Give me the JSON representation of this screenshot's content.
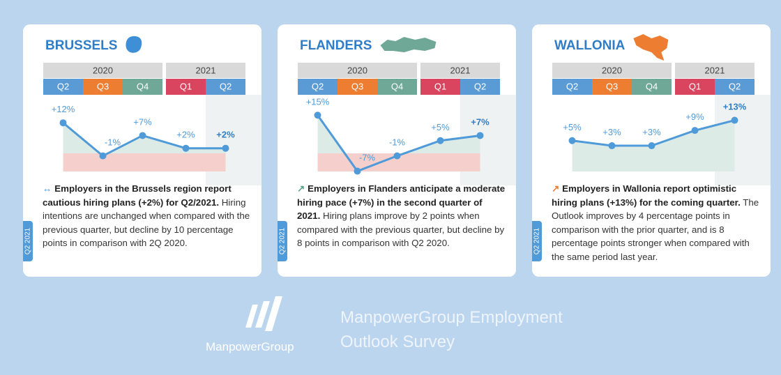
{
  "chart_data": [
    {
      "type": "line",
      "title": "BRUSSELS",
      "years": [
        "2020",
        "2021"
      ],
      "categories": [
        "Q2",
        "Q3",
        "Q4",
        "Q1",
        "Q2"
      ],
      "category_colors": [
        "#5b9bd5",
        "#ed7d31",
        "#6fa896",
        "#d9455f",
        "#5b9bd5"
      ],
      "values": [
        12,
        -1,
        7,
        2,
        2
      ],
      "value_labels": [
        "+12%",
        "-1%",
        "+7%",
        "+2%",
        "+2%"
      ],
      "color": "#4f9ad8",
      "icon": "↔",
      "icon_color": "#3a8fd8",
      "lead": "Employers in the Brussels region report cautious hiring plans (+2%) for Q2/2021.",
      "body": "Hiring intentions are unchanged when compared with the previous quarter, but decline by 10 percentage points in comparison with 2Q 2020.",
      "edition": "Q2 2021",
      "map_color": "#3f8fd6"
    },
    {
      "type": "line",
      "title": "FLANDERS",
      "years": [
        "2020",
        "2021"
      ],
      "categories": [
        "Q2",
        "Q3",
        "Q4",
        "Q1",
        "Q2"
      ],
      "category_colors": [
        "#5b9bd5",
        "#ed7d31",
        "#6fa896",
        "#d9455f",
        "#5b9bd5"
      ],
      "values": [
        15,
        -7,
        -1,
        5,
        7
      ],
      "value_labels": [
        "+15%",
        "-7%",
        "-1%",
        "+5%",
        "+7%"
      ],
      "color": "#4f9ad8",
      "icon": "↗",
      "icon_color": "#5aa58a",
      "lead": "Employers in Flanders anticipate a moderate hiring pace (+7%) in the second quarter of 2021.",
      "body": "Hiring plans improve by 2 points when compared with the previous quarter, but decline by 8 points in comparison with Q2 2020.",
      "edition": "Q2 2021",
      "map_color": "#6fa896"
    },
    {
      "type": "line",
      "title": "WALLONIA",
      "years": [
        "2020",
        "2021"
      ],
      "categories": [
        "Q2",
        "Q3",
        "Q4",
        "Q1",
        "Q2"
      ],
      "category_colors": [
        "#5b9bd5",
        "#ed7d31",
        "#6fa896",
        "#d9455f",
        "#5b9bd5"
      ],
      "values": [
        5,
        3,
        3,
        9,
        13
      ],
      "value_labels": [
        "+5%",
        "+3%",
        "+3%",
        "+9%",
        "+13%"
      ],
      "color": "#4f9ad8",
      "icon": "↗",
      "icon_color": "#ed7d31",
      "lead": "Employers in Wallonia report optimistic hiring plans (+13%) for the coming quarter.",
      "body": "The Outlook improves by 4 percentage points in comparison with the prior quarter, and is 8 percentage points stronger when compared with the same period last year.",
      "edition": "Q2 2021",
      "map_color": "#ed7d31"
    }
  ],
  "footer": {
    "brand": "ManpowerGroup",
    "title_lines": [
      "ManpowerGroup Employment",
      "Outlook Survey"
    ]
  }
}
